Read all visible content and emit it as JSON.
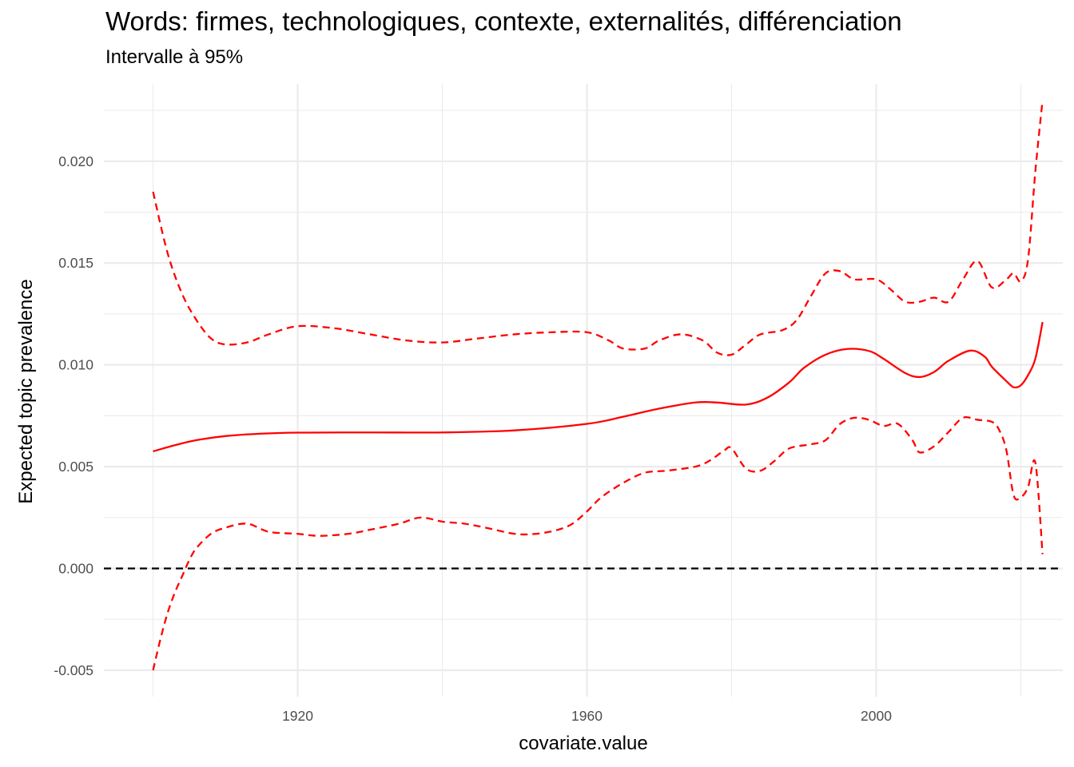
{
  "chart_data": {
    "type": "line",
    "title": "Words: firmes, technologiques, contexte, externalités, différenciation",
    "subtitle": "Intervalle à 95%",
    "xlabel": "covariate.value",
    "ylabel": "Expected topic prevalence",
    "xlim": [
      1893.2,
      2025.8
    ],
    "ylim": [
      -0.0063,
      0.0238
    ],
    "x_ticks": [
      1920,
      1960,
      2000
    ],
    "x_tick_labels": [
      "1920",
      "1960",
      "2000"
    ],
    "y_ticks": [
      -0.005,
      0.0,
      0.005,
      0.01,
      0.015,
      0.02
    ],
    "y_tick_labels": [
      "-0.005",
      "0.000",
      "0.005",
      "0.010",
      "0.015",
      "0.020"
    ],
    "reference_line": {
      "y": 0.0,
      "style": "dashed",
      "color": "#000000"
    },
    "grid": true,
    "colors": {
      "series": "#ff0000",
      "grid": "#ebebeb",
      "reference": "#000000"
    },
    "series": [
      {
        "role": "estimate",
        "style": "solid",
        "x": [
          1900,
          1903,
          1906,
          1910,
          1915,
          1920,
          1930,
          1940,
          1950,
          1960,
          1965,
          1970,
          1975,
          1978,
          1982,
          1985,
          1988,
          1990,
          1993,
          1996,
          1999,
          2001,
          2004,
          2006,
          2008,
          2010,
          2013,
          2015,
          2016,
          2018,
          2019,
          2020,
          2021,
          2022,
          2023
        ],
        "y": [
          0.00575,
          0.00605,
          0.0063,
          0.0065,
          0.00662,
          0.00667,
          0.00668,
          0.00668,
          0.00678,
          0.0071,
          0.00745,
          0.00785,
          0.00815,
          0.00815,
          0.00805,
          0.0084,
          0.00915,
          0.00985,
          0.0105,
          0.01078,
          0.01068,
          0.0103,
          0.0096,
          0.0094,
          0.00965,
          0.0102,
          0.0107,
          0.0104,
          0.0099,
          0.0092,
          0.0089,
          0.009,
          0.0095,
          0.0103,
          0.0121
        ]
      },
      {
        "role": "upper 95%",
        "style": "dashed",
        "x": [
          1900,
          1902,
          1904,
          1906,
          1908,
          1910,
          1913,
          1916,
          1920,
          1925,
          1930,
          1935,
          1940,
          1945,
          1950,
          1955,
          1960,
          1963,
          1965,
          1968,
          1970,
          1973,
          1976,
          1978,
          1980,
          1982,
          1984,
          1987,
          1989,
          1991,
          1993,
          1995,
          1997,
          2000,
          2002,
          2004,
          2006,
          2008,
          2010,
          2012,
          2014,
          2016,
          2018,
          2019,
          2020,
          2021,
          2022,
          2023
        ],
        "y": [
          0.0185,
          0.0155,
          0.0135,
          0.0122,
          0.0113,
          0.011,
          0.0111,
          0.0115,
          0.0119,
          0.0118,
          0.0115,
          0.0112,
          0.0111,
          0.0113,
          0.0115,
          0.0116,
          0.0116,
          0.0112,
          0.0108,
          0.0108,
          0.0112,
          0.0115,
          0.0112,
          0.0106,
          0.0105,
          0.011,
          0.0115,
          0.0117,
          0.0122,
          0.0134,
          0.0145,
          0.0146,
          0.0142,
          0.0142,
          0.0137,
          0.0131,
          0.0131,
          0.0133,
          0.0131,
          0.0142,
          0.0151,
          0.0138,
          0.0142,
          0.0145,
          0.0141,
          0.0152,
          0.0195,
          0.023
        ]
      },
      {
        "role": "lower 95%",
        "style": "dashed",
        "x": [
          1900,
          1901,
          1902,
          1903,
          1904,
          1905,
          1906,
          1908,
          1910,
          1913,
          1916,
          1920,
          1923,
          1927,
          1930,
          1934,
          1937,
          1940,
          1943,
          1946,
          1950,
          1953,
          1956,
          1958,
          1960,
          1962,
          1965,
          1968,
          1971,
          1975,
          1977,
          1979,
          1980,
          1982,
          1984,
          1986,
          1988,
          1991,
          1993,
          1995,
          1997,
          1999,
          2001,
          2003,
          2005,
          2006,
          2008,
          2010,
          2012,
          2014,
          2016,
          2017,
          2018,
          2019,
          2020,
          2021,
          2022,
          2023
        ],
        "y": [
          -0.005,
          -0.0035,
          -0.0022,
          -0.0012,
          -0.0004,
          0.0004,
          0.001,
          0.0017,
          0.002,
          0.0022,
          0.0018,
          0.0017,
          0.0016,
          0.0017,
          0.0019,
          0.0022,
          0.0025,
          0.0023,
          0.0022,
          0.002,
          0.0017,
          0.0017,
          0.0019,
          0.0022,
          0.0028,
          0.0035,
          0.0042,
          0.0047,
          0.0048,
          0.005,
          0.0053,
          0.0058,
          0.0059,
          0.0049,
          0.0048,
          0.0053,
          0.0059,
          0.0061,
          0.0063,
          0.0071,
          0.0074,
          0.0073,
          0.007,
          0.0071,
          0.0063,
          0.0057,
          0.006,
          0.0067,
          0.0074,
          0.0073,
          0.0072,
          0.0068,
          0.0058,
          0.0036,
          0.0035,
          0.004,
          0.0052,
          0.0007
        ]
      }
    ]
  }
}
